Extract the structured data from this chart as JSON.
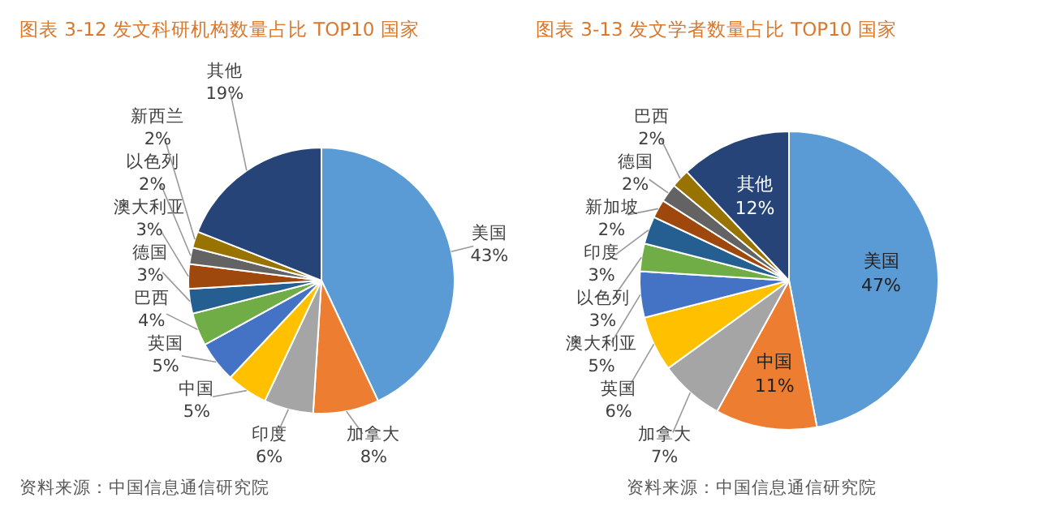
{
  "chart_data": [
    {
      "type": "pie",
      "title": "图表 3-12 发文科研机构数量占比 TOP10 国家",
      "categories": [
        "美国",
        "加拿大",
        "印度",
        "中国",
        "英国",
        "巴西",
        "德国",
        "澳大利亚",
        "以色列",
        "新西兰",
        "其他"
      ],
      "values": [
        43,
        8,
        6,
        5,
        5,
        4,
        3,
        3,
        2,
        2,
        19
      ],
      "value_labels": [
        "43%",
        "8%",
        "6%",
        "5%",
        "5%",
        "4%",
        "3%",
        "3%",
        "2%",
        "2%",
        "19%"
      ],
      "colors": [
        "#5b9bd5",
        "#ed7d31",
        "#a5a5a5",
        "#ffc000",
        "#4472c4",
        "#70ad47",
        "#255e91",
        "#9e480e",
        "#636363",
        "#997300",
        "#264478"
      ],
      "annotations": [
        "资料来源：中国信息通信研究院"
      ]
    },
    {
      "type": "pie",
      "title": "图表 3-13 发文学者数量占比 TOP10 国家",
      "categories": [
        "美国",
        "中国",
        "加拿大",
        "英国",
        "澳大利亚",
        "以色列",
        "印度",
        "新加坡",
        "德国",
        "巴西",
        "其他"
      ],
      "values": [
        47,
        11,
        7,
        6,
        5,
        3,
        3,
        2,
        2,
        2,
        12
      ],
      "value_labels": [
        "47%",
        "11%",
        "7%",
        "6%",
        "5%",
        "3%",
        "3%",
        "2%",
        "2%",
        "2%",
        "12%"
      ],
      "colors": [
        "#5b9bd5",
        "#ed7d31",
        "#a5a5a5",
        "#ffc000",
        "#4472c4",
        "#70ad47",
        "#255e91",
        "#9e480e",
        "#636363",
        "#997300",
        "#264478"
      ],
      "annotations": [
        "资料来源：中国信息通信研究院"
      ]
    }
  ]
}
